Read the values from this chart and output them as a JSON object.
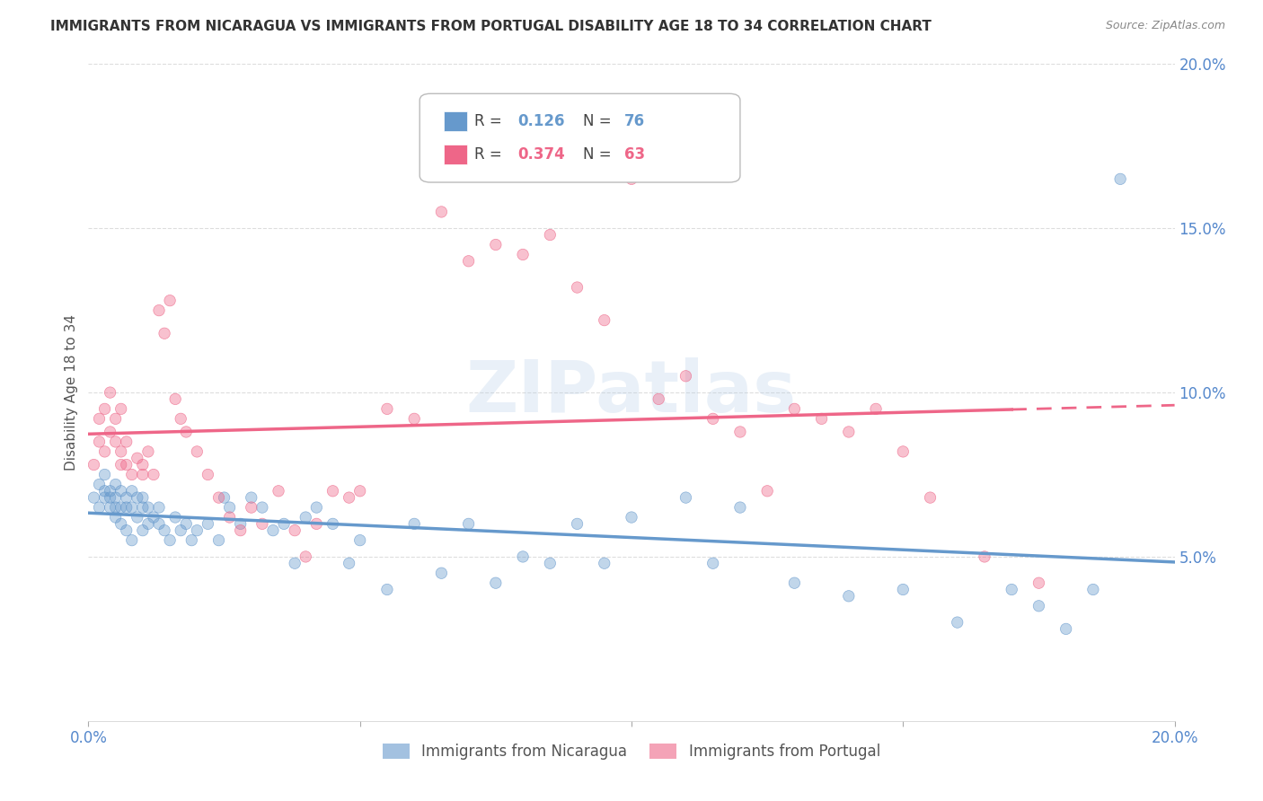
{
  "title": "IMMIGRANTS FROM NICARAGUA VS IMMIGRANTS FROM PORTUGAL DISABILITY AGE 18 TO 34 CORRELATION CHART",
  "source": "Source: ZipAtlas.com",
  "ylabel": "Disability Age 18 to 34",
  "x_min": 0.0,
  "x_max": 0.2,
  "y_min": 0.0,
  "y_max": 0.2,
  "x_ticks": [
    0.0,
    0.05,
    0.1,
    0.15,
    0.2
  ],
  "x_tick_labels": [
    "0.0%",
    "",
    "",
    "",
    "20.0%"
  ],
  "y_ticks_right": [
    0.05,
    0.1,
    0.15,
    0.2
  ],
  "y_tick_labels_right": [
    "5.0%",
    "10.0%",
    "15.0%",
    "20.0%"
  ],
  "nicaragua_color": "#6699cc",
  "portugal_color": "#ee6688",
  "nicaragua_R": 0.126,
  "nicaragua_N": 76,
  "portugal_R": 0.374,
  "portugal_N": 63,
  "legend_label_nicaragua": "Immigrants from Nicaragua",
  "legend_label_portugal": "Immigrants from Portugal",
  "watermark": "ZIPatlas",
  "nicaragua_x": [
    0.001,
    0.002,
    0.002,
    0.003,
    0.003,
    0.003,
    0.004,
    0.004,
    0.004,
    0.005,
    0.005,
    0.005,
    0.005,
    0.006,
    0.006,
    0.006,
    0.007,
    0.007,
    0.007,
    0.008,
    0.008,
    0.008,
    0.009,
    0.009,
    0.01,
    0.01,
    0.01,
    0.011,
    0.011,
    0.012,
    0.013,
    0.013,
    0.014,
    0.015,
    0.016,
    0.017,
    0.018,
    0.019,
    0.02,
    0.022,
    0.024,
    0.025,
    0.026,
    0.028,
    0.03,
    0.032,
    0.034,
    0.036,
    0.038,
    0.04,
    0.042,
    0.045,
    0.048,
    0.05,
    0.055,
    0.06,
    0.065,
    0.07,
    0.075,
    0.08,
    0.085,
    0.09,
    0.095,
    0.1,
    0.11,
    0.115,
    0.12,
    0.13,
    0.14,
    0.15,
    0.16,
    0.17,
    0.175,
    0.18,
    0.185,
    0.19
  ],
  "nicaragua_y": [
    0.068,
    0.072,
    0.065,
    0.075,
    0.07,
    0.068,
    0.07,
    0.068,
    0.065,
    0.072,
    0.068,
    0.065,
    0.062,
    0.07,
    0.065,
    0.06,
    0.068,
    0.065,
    0.058,
    0.07,
    0.065,
    0.055,
    0.068,
    0.062,
    0.068,
    0.065,
    0.058,
    0.065,
    0.06,
    0.062,
    0.065,
    0.06,
    0.058,
    0.055,
    0.062,
    0.058,
    0.06,
    0.055,
    0.058,
    0.06,
    0.055,
    0.068,
    0.065,
    0.06,
    0.068,
    0.065,
    0.058,
    0.06,
    0.048,
    0.062,
    0.065,
    0.06,
    0.048,
    0.055,
    0.04,
    0.06,
    0.045,
    0.06,
    0.042,
    0.05,
    0.048,
    0.06,
    0.048,
    0.062,
    0.068,
    0.048,
    0.065,
    0.042,
    0.038,
    0.04,
    0.03,
    0.04,
    0.035,
    0.028,
    0.04,
    0.165
  ],
  "portugal_x": [
    0.001,
    0.002,
    0.002,
    0.003,
    0.003,
    0.004,
    0.004,
    0.005,
    0.005,
    0.006,
    0.006,
    0.006,
    0.007,
    0.007,
    0.008,
    0.009,
    0.01,
    0.01,
    0.011,
    0.012,
    0.013,
    0.014,
    0.015,
    0.016,
    0.017,
    0.018,
    0.02,
    0.022,
    0.024,
    0.026,
    0.028,
    0.03,
    0.032,
    0.035,
    0.038,
    0.04,
    0.042,
    0.045,
    0.048,
    0.05,
    0.055,
    0.06,
    0.065,
    0.07,
    0.075,
    0.08,
    0.085,
    0.09,
    0.095,
    0.1,
    0.105,
    0.11,
    0.115,
    0.12,
    0.125,
    0.13,
    0.135,
    0.14,
    0.145,
    0.15,
    0.155,
    0.165,
    0.175
  ],
  "portugal_y": [
    0.078,
    0.085,
    0.092,
    0.082,
    0.095,
    0.088,
    0.1,
    0.085,
    0.092,
    0.078,
    0.082,
    0.095,
    0.085,
    0.078,
    0.075,
    0.08,
    0.078,
    0.075,
    0.082,
    0.075,
    0.125,
    0.118,
    0.128,
    0.098,
    0.092,
    0.088,
    0.082,
    0.075,
    0.068,
    0.062,
    0.058,
    0.065,
    0.06,
    0.07,
    0.058,
    0.05,
    0.06,
    0.07,
    0.068,
    0.07,
    0.095,
    0.092,
    0.155,
    0.14,
    0.145,
    0.142,
    0.148,
    0.132,
    0.122,
    0.165,
    0.098,
    0.105,
    0.092,
    0.088,
    0.07,
    0.095,
    0.092,
    0.088,
    0.095,
    0.082,
    0.068,
    0.05,
    0.042
  ],
  "background_color": "#ffffff",
  "grid_color": "#dddddd",
  "title_color": "#333333",
  "tick_color": "#5588cc"
}
